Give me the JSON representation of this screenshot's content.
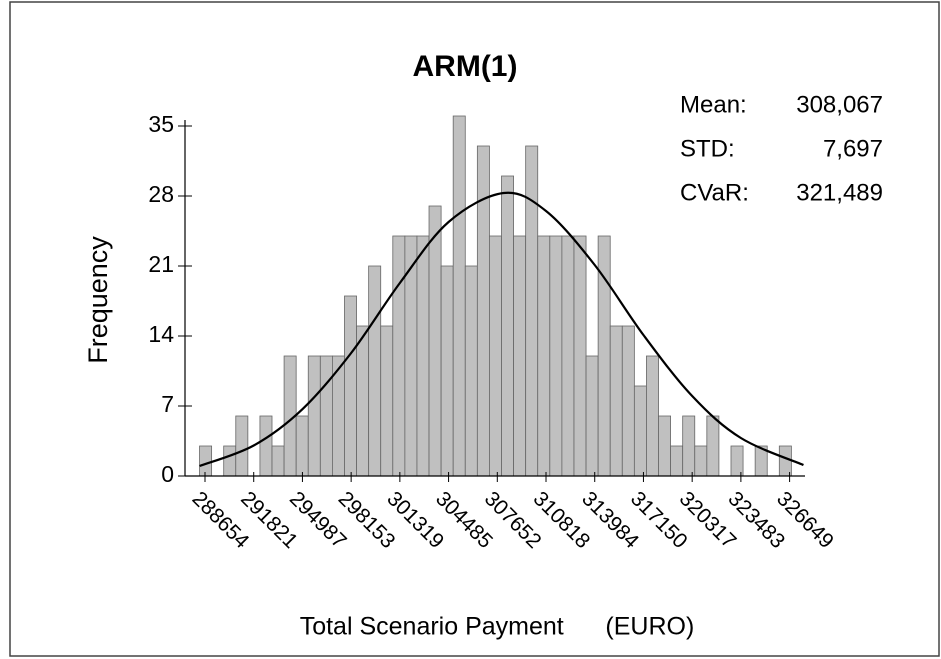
{
  "chart_data": {
    "type": "histogram",
    "title": "ARM(1)",
    "x_label": "Total Scenario Payment      (EURO)",
    "y_label": "Frequency",
    "bins": [
      288300,
      289085,
      289870,
      290655,
      291440,
      292225,
      293010,
      293795,
      294580,
      295365,
      296150,
      296935,
      297720,
      298505,
      299290,
      300075,
      300860,
      301645,
      302430,
      303215,
      304000,
      304785,
      305570,
      306355,
      307140,
      307925,
      308710,
      309495,
      310280,
      311065,
      311850,
      312635,
      313420,
      314205,
      314990,
      315775,
      316560,
      317345,
      318130,
      318915,
      319700,
      320485,
      321270,
      322055,
      322840,
      323625,
      324410,
      325195,
      325980,
      326765,
      327550
    ],
    "counts": [
      3,
      0,
      3,
      6,
      0,
      6,
      3,
      12,
      6,
      12,
      12,
      12,
      18,
      15,
      21,
      15,
      24,
      24,
      24,
      27,
      21,
      36,
      21,
      33,
      24,
      30,
      24,
      33,
      24,
      24,
      24,
      24,
      12,
      24,
      15,
      15,
      9,
      12,
      6,
      3,
      6,
      3,
      6,
      0,
      3,
      0,
      3,
      0,
      3,
      0
    ],
    "color": "#c0c0c0",
    "curve": {
      "color": "#000000",
      "x": [
        288300,
        291821,
        294987,
        298153,
        301319,
        304485,
        308067,
        310818,
        313984,
        317150,
        320317,
        323483,
        327550
      ],
      "values": [
        1.0,
        3.05,
        6.68,
        12.3,
        19.3,
        25.4,
        28.3,
        26.5,
        21.1,
        14.1,
        8.0,
        3.8,
        1.1
      ]
    },
    "xlim": [
      287550,
      327650
    ],
    "ylim": [
      0,
      35
    ],
    "xticks": [
      288654,
      291821,
      294987,
      298153,
      301319,
      304485,
      307652,
      310818,
      313984,
      317150,
      320317,
      323483,
      326649
    ],
    "yticks": [
      0,
      7,
      14,
      21,
      28,
      35
    ],
    "annotations": [
      {
        "label": "Mean:",
        "value": "308,067"
      },
      {
        "label": "STD:",
        "value": "7,697"
      },
      {
        "label": "CVaR:",
        "value": "321,489"
      }
    ]
  }
}
